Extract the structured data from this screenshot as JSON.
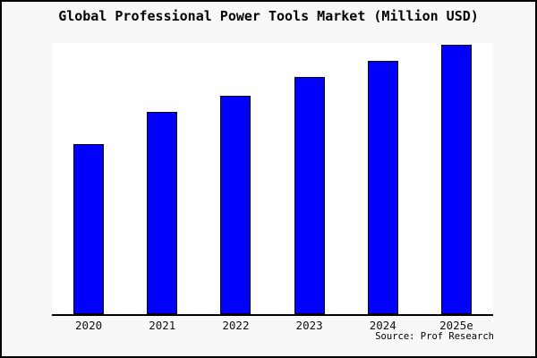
{
  "chart_data": {
    "type": "bar",
    "title": "Global Professional Power Tools Market (Million USD)",
    "categories": [
      "2020",
      "2021",
      "2022",
      "2023",
      "2024",
      "2025e"
    ],
    "values": [
      63,
      75,
      81,
      88,
      94,
      100
    ],
    "value_scale_note": "no y-axis or data labels shown in chart; values estimated from bar heights relative to tallest bar (2025e = 100)",
    "xlabel": "",
    "ylabel": "",
    "ylim": [
      0,
      100
    ],
    "yaxis_visible": false,
    "gridlines": false,
    "legend": false,
    "bar_color": "#0000FB",
    "bar_border_color": "#000000",
    "source": "Source: Prof Research"
  },
  "colors": {
    "figure_background": "#F8F8F8",
    "plot_background": "#FFFFFF",
    "axis_line": "#000000",
    "outer_border": "#000000",
    "title_text": "#000000",
    "tick_label_text": "#111111"
  }
}
